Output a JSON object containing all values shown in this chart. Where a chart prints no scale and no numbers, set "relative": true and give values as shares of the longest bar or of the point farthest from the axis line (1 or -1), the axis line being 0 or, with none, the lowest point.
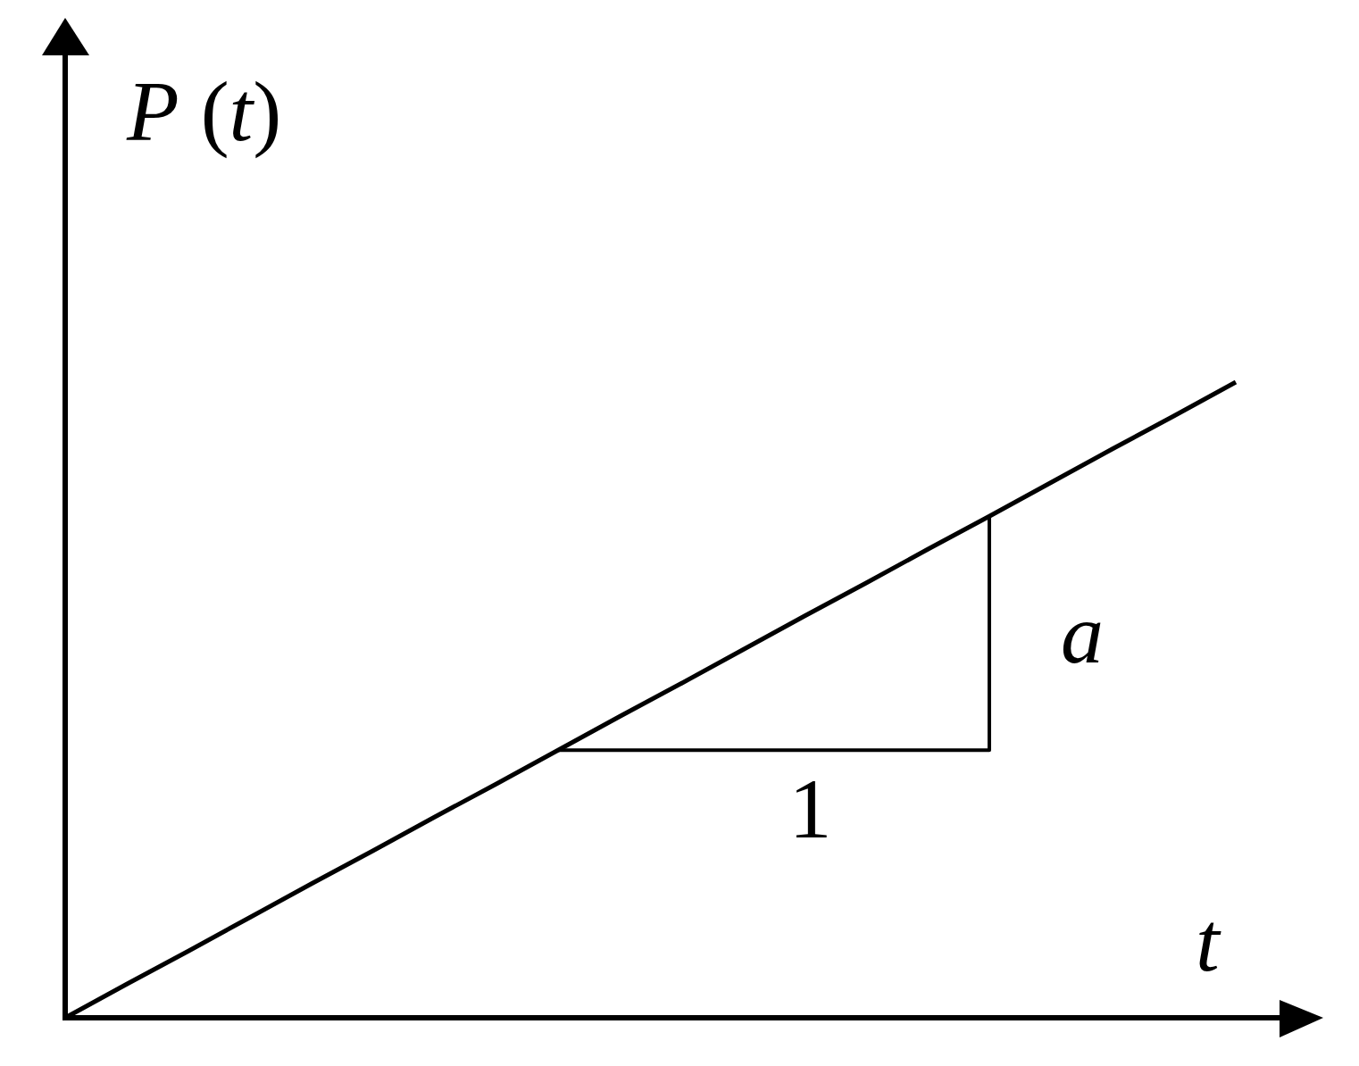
{
  "chart_data": {
    "type": "line",
    "xlabel": "t",
    "ylabel": "P (t)",
    "relative": true,
    "categories": [
      null,
      null,
      null,
      null,
      null,
      null,
      null,
      null,
      null,
      null,
      null,
      null,
      null,
      null,
      null,
      null,
      null,
      null,
      null,
      null
    ],
    "series": [
      {
        "color": "#000000",
        "values": [
          0,
          0.053,
          0.105,
          0.158,
          0.211,
          0.263,
          0.316,
          0.368,
          0.421,
          0.474,
          0.526,
          0.579,
          0.632,
          0.684,
          0.737,
          0.789,
          0.842,
          0.895,
          0.947,
          1
        ]
      },
      {
        "type": "step",
        "color": "#000000",
        "values": [
          null,
          null,
          null,
          null,
          null,
          null,
          null,
          null,
          0.421,
          0.421,
          0.421,
          0.421,
          0.421,
          0.421,
          0.421,
          0.789,
          null,
          null,
          null,
          null
        ]
      }
    ],
    "annotations": [
      "1",
      "a"
    ]
  }
}
